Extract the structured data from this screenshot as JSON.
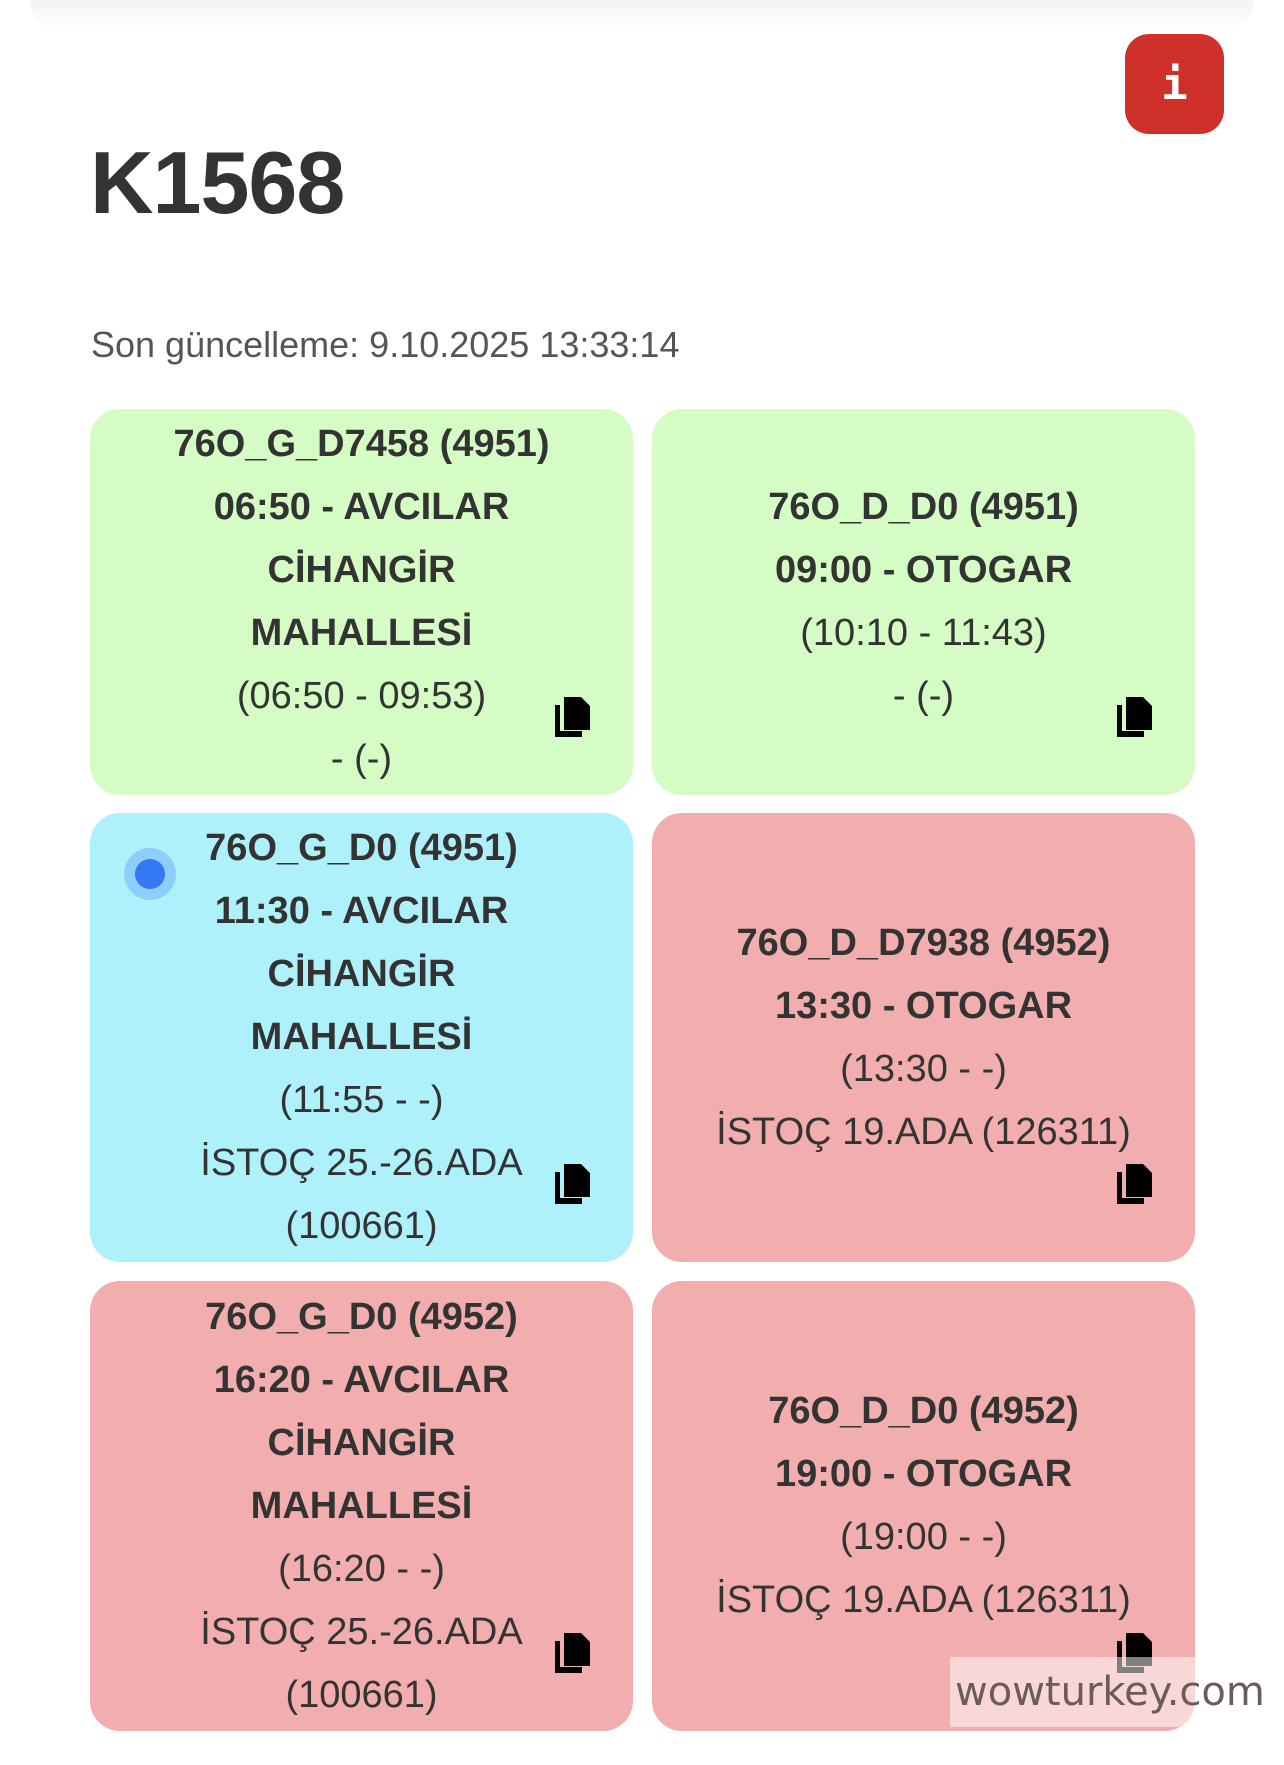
{
  "header": {
    "title": "K1568",
    "info_label": "i",
    "last_update": "Son güncelleme: 9.10.2025 13:33:14"
  },
  "colors": {
    "completed": "#d5fcc4",
    "active": "#aff1fb",
    "pending": "#f2aeae",
    "info": "#d0302a",
    "active_dot": "#3478f6"
  },
  "trips": [
    {
      "status": "completed",
      "lines": [
        "76O_G_D7458 (4951)",
        "06:50 - AVCILAR CİHANGİR MAHALLESİ",
        "(06:50 - 09:53)",
        "- (-)"
      ]
    },
    {
      "status": "completed",
      "lines": [
        "76O_D_D0 (4951)",
        "09:00 - OTOGAR",
        "(10:10 - 11:43)",
        "- (-)"
      ]
    },
    {
      "status": "active",
      "lines": [
        "76O_G_D0 (4951)",
        "11:30 - AVCILAR CİHANGİR MAHALLESİ",
        "(11:55 - -)",
        "İSTOÇ 25.-26.ADA (100661)"
      ]
    },
    {
      "status": "pending",
      "lines": [
        "76O_D_D7938 (4952)",
        "13:30 - OTOGAR",
        "(13:30 - -)",
        "İSTOÇ 19.ADA (126311)"
      ]
    },
    {
      "status": "pending",
      "lines": [
        "76O_G_D0 (4952)",
        "16:20 - AVCILAR CİHANGİR MAHALLESİ",
        "(16:20 - -)",
        "İSTOÇ 25.-26.ADA (100661)"
      ]
    },
    {
      "status": "pending",
      "lines": [
        "76O_D_D0 (4952)",
        "19:00 - OTOGAR",
        "(19:00 - -)",
        "İSTOÇ 19.ADA (126311)"
      ]
    }
  ],
  "watermark": "wowturkey.com"
}
